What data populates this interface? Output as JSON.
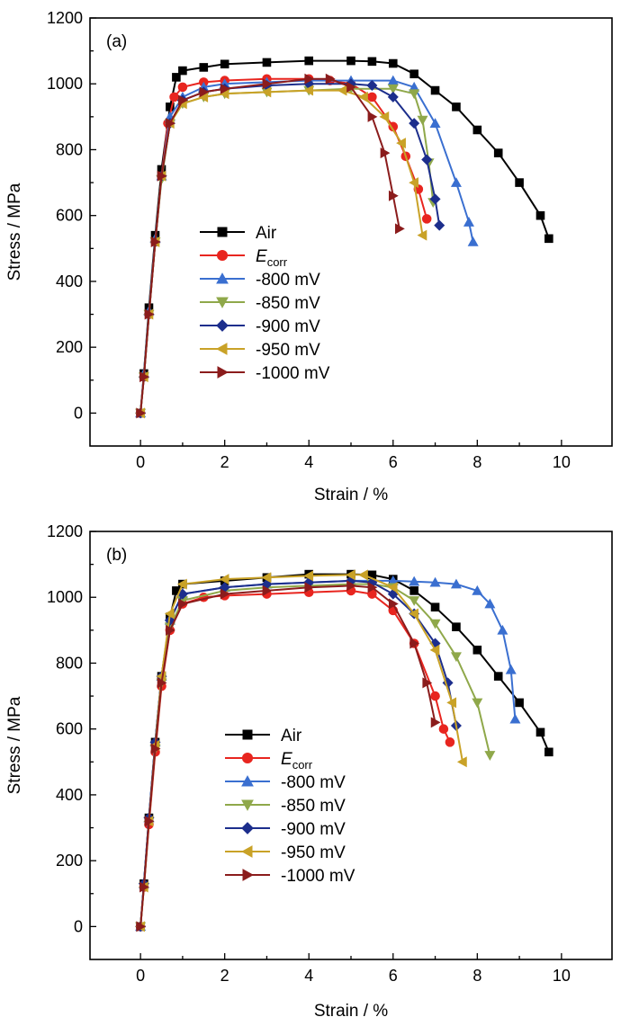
{
  "chart_data": [
    {
      "type": "line",
      "panel_label": "(a)",
      "xlabel": "Strain / %",
      "ylabel": "Stress / MPa",
      "xlim": [
        -1.2,
        11.2
      ],
      "ylim": [
        -100,
        1200
      ],
      "xticks": [
        0,
        2,
        4,
        6,
        8,
        10
      ],
      "yticks": [
        0,
        200,
        400,
        600,
        800,
        1000,
        1200
      ],
      "legend_position": "center-left",
      "series": [
        {
          "name": "Air",
          "color": "#000000",
          "marker": "square",
          "x": [
            0.0,
            0.08,
            0.2,
            0.35,
            0.5,
            0.7,
            0.85,
            1.0,
            1.5,
            2.0,
            3.0,
            4.0,
            5.0,
            5.5,
            6.0,
            6.5,
            7.0,
            7.5,
            8.0,
            8.5,
            9.0,
            9.5,
            9.7
          ],
          "y": [
            0,
            120,
            320,
            540,
            740,
            930,
            1020,
            1040,
            1050,
            1060,
            1065,
            1070,
            1070,
            1068,
            1062,
            1030,
            980,
            930,
            860,
            790,
            700,
            600,
            530
          ]
        },
        {
          "name": "E_corr",
          "color": "#e8251f",
          "marker": "circle",
          "x": [
            0.0,
            0.08,
            0.2,
            0.35,
            0.5,
            0.65,
            0.8,
            1.0,
            1.5,
            2.0,
            3.0,
            4.0,
            4.5,
            5.0,
            5.5,
            6.0,
            6.3,
            6.6,
            6.8
          ],
          "y": [
            0,
            110,
            300,
            520,
            720,
            880,
            960,
            990,
            1005,
            1010,
            1015,
            1015,
            1010,
            1000,
            960,
            870,
            780,
            680,
            590
          ]
        },
        {
          "name": "-800 mV",
          "color": "#3a6fd0",
          "marker": "triangle-up",
          "x": [
            0.0,
            0.08,
            0.2,
            0.35,
            0.5,
            0.7,
            1.0,
            1.5,
            2.0,
            3.0,
            4.0,
            5.0,
            6.0,
            6.5,
            7.0,
            7.5,
            7.8,
            7.9
          ],
          "y": [
            0,
            120,
            310,
            530,
            720,
            900,
            960,
            990,
            1000,
            1005,
            1010,
            1010,
            1010,
            990,
            880,
            700,
            580,
            520
          ]
        },
        {
          "name": "-850 mV",
          "color": "#8fa84a",
          "marker": "triangle-down",
          "x": [
            0.0,
            0.08,
            0.2,
            0.35,
            0.5,
            0.7,
            1.0,
            1.5,
            2.0,
            3.0,
            4.0,
            5.0,
            6.0,
            6.5,
            6.7,
            6.85,
            6.95
          ],
          "y": [
            0,
            110,
            300,
            520,
            710,
            880,
            940,
            960,
            970,
            975,
            980,
            985,
            985,
            970,
            890,
            760,
            640
          ]
        },
        {
          "name": "-900 mV",
          "color": "#1c2e8c",
          "marker": "diamond",
          "x": [
            0.0,
            0.08,
            0.2,
            0.35,
            0.5,
            0.7,
            1.0,
            1.5,
            2.0,
            3.0,
            4.0,
            5.0,
            5.5,
            6.0,
            6.5,
            6.8,
            7.0,
            7.1
          ],
          "y": [
            0,
            110,
            300,
            520,
            720,
            880,
            950,
            975,
            985,
            995,
            1000,
            1000,
            995,
            960,
            880,
            770,
            650,
            570
          ]
        },
        {
          "name": "-950 mV",
          "color": "#c9a227",
          "marker": "triangle-left",
          "x": [
            0.0,
            0.08,
            0.2,
            0.35,
            0.5,
            0.7,
            1.0,
            1.5,
            2.0,
            3.0,
            4.0,
            4.8,
            5.3,
            5.8,
            6.2,
            6.5,
            6.7
          ],
          "y": [
            0,
            110,
            300,
            520,
            720,
            880,
            940,
            960,
            970,
            975,
            980,
            980,
            960,
            900,
            820,
            700,
            540
          ]
        },
        {
          "name": "-1000 mV",
          "color": "#8b1c1c",
          "marker": "triangle-right",
          "x": [
            0.0,
            0.08,
            0.2,
            0.35,
            0.5,
            0.7,
            1.0,
            1.5,
            2.0,
            3.0,
            4.0,
            4.5,
            5.0,
            5.5,
            5.8,
            6.0,
            6.15
          ],
          "y": [
            0,
            110,
            300,
            520,
            720,
            880,
            950,
            975,
            985,
            1000,
            1015,
            1015,
            990,
            900,
            790,
            660,
            560
          ]
        }
      ]
    },
    {
      "type": "line",
      "panel_label": "(b)",
      "xlabel": "Strain / %",
      "ylabel": "Stress / MPa",
      "xlim": [
        -1.2,
        11.2
      ],
      "ylim": [
        -100,
        1200
      ],
      "xticks": [
        0,
        2,
        4,
        6,
        8,
        10
      ],
      "yticks": [
        0,
        200,
        400,
        600,
        800,
        1000,
        1200
      ],
      "legend_position": "center-left",
      "series": [
        {
          "name": "Air",
          "color": "#000000",
          "marker": "square",
          "x": [
            0.0,
            0.08,
            0.2,
            0.35,
            0.5,
            0.7,
            0.85,
            1.0,
            2.0,
            3.0,
            4.0,
            5.0,
            5.5,
            6.0,
            6.5,
            7.0,
            7.5,
            8.0,
            8.5,
            9.0,
            9.5,
            9.7
          ],
          "y": [
            0,
            130,
            330,
            560,
            760,
            940,
            1020,
            1040,
            1050,
            1060,
            1070,
            1070,
            1068,
            1055,
            1020,
            970,
            910,
            840,
            760,
            680,
            590,
            530
          ]
        },
        {
          "name": "E_corr",
          "color": "#e8251f",
          "marker": "circle",
          "x": [
            0.0,
            0.08,
            0.2,
            0.35,
            0.5,
            0.7,
            1.0,
            1.5,
            2.0,
            3.0,
            4.0,
            5.0,
            5.5,
            6.0,
            6.5,
            7.0,
            7.2,
            7.35
          ],
          "y": [
            0,
            120,
            310,
            530,
            730,
            900,
            980,
            1000,
            1005,
            1010,
            1015,
            1020,
            1010,
            960,
            860,
            700,
            600,
            560
          ]
        },
        {
          "name": "-800 mV",
          "color": "#3a6fd0",
          "marker": "triangle-up",
          "x": [
            0.0,
            0.08,
            0.2,
            0.35,
            0.5,
            0.7,
            1.0,
            2.0,
            3.0,
            4.0,
            5.0,
            6.0,
            6.5,
            7.0,
            7.5,
            8.0,
            8.3,
            8.6,
            8.8,
            8.9
          ],
          "y": [
            0,
            130,
            330,
            560,
            760,
            930,
            1010,
            1030,
            1040,
            1045,
            1050,
            1050,
            1048,
            1045,
            1040,
            1020,
            980,
            900,
            780,
            630
          ]
        },
        {
          "name": "-850 mV",
          "color": "#8fa84a",
          "marker": "triangle-down",
          "x": [
            0.0,
            0.08,
            0.2,
            0.35,
            0.5,
            0.7,
            1.0,
            2.0,
            3.0,
            4.0,
            5.0,
            5.5,
            6.0,
            6.5,
            7.0,
            7.5,
            8.0,
            8.3
          ],
          "y": [
            0,
            120,
            320,
            540,
            740,
            910,
            990,
            1020,
            1030,
            1035,
            1040,
            1040,
            1030,
            990,
            920,
            820,
            680,
            520
          ]
        },
        {
          "name": "-900 mV",
          "color": "#1c2e8c",
          "marker": "diamond",
          "x": [
            0.0,
            0.08,
            0.2,
            0.35,
            0.5,
            0.7,
            1.0,
            2.0,
            3.0,
            4.0,
            5.0,
            5.5,
            6.0,
            6.5,
            7.0,
            7.3,
            7.5
          ],
          "y": [
            0,
            130,
            330,
            560,
            760,
            930,
            1010,
            1030,
            1040,
            1045,
            1050,
            1045,
            1010,
            950,
            860,
            740,
            610
          ]
        },
        {
          "name": "-950 mV",
          "color": "#c9a227",
          "marker": "triangle-left",
          "x": [
            0.0,
            0.08,
            0.2,
            0.35,
            0.5,
            0.7,
            1.0,
            2.0,
            3.0,
            4.0,
            5.0,
            5.3,
            6.0,
            6.5,
            7.0,
            7.4,
            7.65
          ],
          "y": [
            0,
            120,
            320,
            550,
            760,
            950,
            1040,
            1055,
            1060,
            1065,
            1068,
            1068,
            1030,
            950,
            840,
            680,
            500
          ]
        },
        {
          "name": "-1000 mV",
          "color": "#8b1c1c",
          "marker": "triangle-right",
          "x": [
            0.0,
            0.08,
            0.2,
            0.35,
            0.5,
            0.7,
            1.0,
            2.0,
            3.0,
            4.0,
            5.0,
            5.5,
            6.0,
            6.5,
            6.8,
            7.0
          ],
          "y": [
            0,
            120,
            320,
            540,
            740,
            900,
            980,
            1010,
            1020,
            1030,
            1035,
            1030,
            980,
            860,
            740,
            620
          ]
        }
      ]
    }
  ]
}
